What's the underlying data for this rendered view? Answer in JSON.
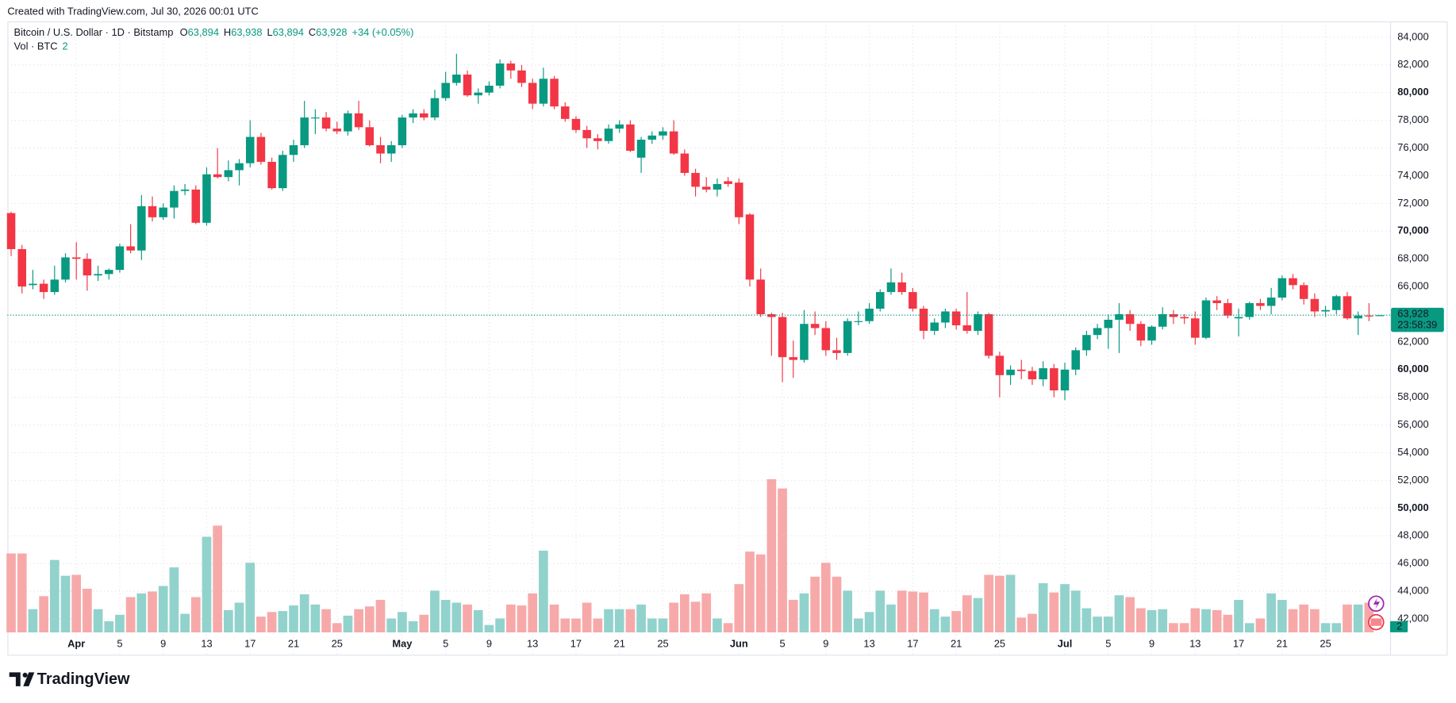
{
  "header": "Created with TradingView.com, Jul 30, 2026 00:01 UTC",
  "logo": "TradingView",
  "chart_data": {
    "type": "candlestick",
    "title": "Bitcoin / U.S. Dollar · 1D · Bitstamp",
    "ohlc_labels": [
      {
        "key": "O",
        "value": "63,894"
      },
      {
        "key": "H",
        "value": "63,938"
      },
      {
        "key": "L",
        "value": "63,894"
      },
      {
        "key": "C",
        "value": "63,928"
      }
    ],
    "change_label": "+34 (+0.05%)",
    "volume_label": "Vol · BTC",
    "countdown": "23:58:39",
    "up_color": "#089981",
    "down_color": "#f23645",
    "volume_up_color": "#92d2cc",
    "volume_down_color": "#f7a9a9",
    "grid": true,
    "categories": [
      "Mar 26",
      "Mar 27",
      "Mar 28",
      "Mar 29",
      "Mar 30",
      "Mar 31",
      "Apr 1",
      "Apr 2",
      "Apr 3",
      "Apr 4",
      "Apr 5",
      "Apr 6",
      "Apr 7",
      "Apr 8",
      "Apr 9",
      "Apr 10",
      "Apr 11",
      "Apr 12",
      "Apr 13",
      "Apr 14",
      "Apr 15",
      "Apr 16",
      "Apr 17",
      "Apr 18",
      "Apr 19",
      "Apr 20",
      "Apr 21",
      "Apr 22",
      "Apr 23",
      "Apr 24",
      "Apr 25",
      "Apr 26",
      "Apr 27",
      "Apr 28",
      "Apr 29",
      "Apr 30",
      "May 1",
      "May 2",
      "May 3",
      "May 4",
      "May 5",
      "May 6",
      "May 7",
      "May 8",
      "May 9",
      "May 10",
      "May 11",
      "May 12",
      "May 13",
      "May 14",
      "May 15",
      "May 16",
      "May 17",
      "May 18",
      "May 19",
      "May 20",
      "May 21",
      "May 22",
      "May 23",
      "May 24",
      "May 25",
      "May 26",
      "May 27",
      "May 28",
      "May 29",
      "May 30",
      "May 31",
      "Jun 1",
      "Jun 2",
      "Jun 3",
      "Jun 4",
      "Jun 5",
      "Jun 6",
      "Jun 7",
      "Jun 8",
      "Jun 9",
      "Jun 10",
      "Jun 11",
      "Jun 12",
      "Jun 13",
      "Jun 14",
      "Jun 15",
      "Jun 16",
      "Jun 17",
      "Jun 18",
      "Jun 19",
      "Jun 20",
      "Jun 21",
      "Jun 22",
      "Jun 23",
      "Jun 24",
      "Jun 25",
      "Jun 26",
      "Jun 27",
      "Jun 28",
      "Jun 29",
      "Jun 30",
      "Jul 1",
      "Jul 2",
      "Jul 3",
      "Jul 4",
      "Jul 5",
      "Jul 6",
      "Jul 7",
      "Jul 8",
      "Jul 9",
      "Jul 10",
      "Jul 11",
      "Jul 12",
      "Jul 13",
      "Jul 14",
      "Jul 15",
      "Jul 16",
      "Jul 17",
      "Jul 18",
      "Jul 19",
      "Jul 20",
      "Jul 21",
      "Jul 22",
      "Jul 23",
      "Jul 24",
      "Jul 25",
      "Jul 26",
      "Jul 27",
      "Jul 28",
      "Jul 29",
      "Jul 30"
    ],
    "open": [
      71300,
      68700,
      66100,
      66200,
      65600,
      66500,
      68100,
      68000,
      66800,
      66900,
      67200,
      68900,
      68600,
      71800,
      71000,
      71700,
      72900,
      73000,
      70600,
      74100,
      73900,
      74400,
      74900,
      76800,
      75000,
      73100,
      75500,
      76200,
      78200,
      78200,
      77400,
      77200,
      78500,
      77500,
      76200,
      75600,
      76200,
      78200,
      78500,
      78200,
      79600,
      80700,
      81300,
      79800,
      80000,
      80500,
      82100,
      81600,
      80700,
      79200,
      81000,
      79000,
      78100,
      77300,
      76700,
      76500,
      77400,
      77700,
      75300,
      76600,
      76900,
      77200,
      75600,
      74200,
      73200,
      73000,
      73600,
      73500,
      71200,
      66500,
      64000,
      63800,
      60900,
      60700,
      63300,
      63000,
      61400,
      61200,
      63500,
      63500,
      64400,
      65600,
      66300,
      65600,
      64400,
      62800,
      63400,
      64200,
      63200,
      62800,
      64000,
      61000,
      59600,
      60000,
      59900,
      59300,
      60100,
      58500,
      60000,
      61400,
      62500,
      63000,
      63600,
      64000,
      63300,
      62100,
      63100,
      64000,
      63800,
      63700,
      62300,
      65000,
      64800,
      63700,
      63800,
      64800,
      64600,
      65200,
      66600,
      66100,
      65100,
      64200,
      64300,
      65300,
      63700,
      63900,
      63894
    ],
    "high": [
      71400,
      69000,
      67200,
      66500,
      67500,
      68400,
      69200,
      68400,
      67500,
      67300,
      69100,
      70500,
      72600,
      72500,
      72000,
      73300,
      73400,
      73300,
      74600,
      76000,
      75100,
      75200,
      78000,
      77100,
      75300,
      75800,
      76600,
      79400,
      78800,
      78600,
      77900,
      78700,
      79400,
      78000,
      76800,
      76500,
      78400,
      78800,
      78800,
      80200,
      81500,
      82800,
      81600,
      80300,
      80800,
      82400,
      82300,
      82000,
      81000,
      81800,
      81200,
      79300,
      78300,
      77600,
      77000,
      77700,
      78000,
      78000,
      76800,
      77200,
      77500,
      78000,
      75900,
      74500,
      73900,
      73800,
      73900,
      73800,
      71300,
      67300,
      64100,
      64100,
      62100,
      64300,
      64200,
      63500,
      62300,
      63700,
      64200,
      64800,
      65800,
      67300,
      67000,
      65900,
      64600,
      63700,
      64400,
      64400,
      65600,
      64200,
      64100,
      61300,
      60300,
      60700,
      60200,
      60600,
      60400,
      60500,
      61600,
      62800,
      63300,
      64000,
      64800,
      64300,
      63500,
      63200,
      64500,
      64300,
      64000,
      64200,
      65200,
      65300,
      65100,
      64400,
      64900,
      65100,
      65900,
      66800,
      66900,
      66300,
      65500,
      64600,
      65400,
      65600,
      64200,
      64800,
      63938
    ],
    "low": [
      68200,
      65500,
      65800,
      65100,
      65400,
      66300,
      66500,
      65700,
      66400,
      66500,
      67000,
      68400,
      67900,
      70700,
      70800,
      70900,
      72600,
      70500,
      70400,
      73800,
      73600,
      73300,
      74600,
      74800,
      73000,
      72900,
      75000,
      76000,
      77000,
      77200,
      77000,
      76900,
      77300,
      76100,
      74900,
      75000,
      76000,
      77800,
      78000,
      78000,
      79400,
      80500,
      79700,
      79200,
      79800,
      80300,
      81000,
      80400,
      78800,
      79000,
      78800,
      77900,
      77100,
      76000,
      75900,
      76300,
      77100,
      75700,
      74200,
      76300,
      76600,
      75500,
      74000,
      72500,
      72800,
      72500,
      73200,
      70500,
      66000,
      63800,
      61000,
      59100,
      59400,
      60500,
      62500,
      61000,
      60700,
      61000,
      63200,
      63300,
      64200,
      65400,
      65400,
      64200,
      62200,
      62500,
      63000,
      62900,
      62600,
      62500,
      60800,
      58000,
      58900,
      59300,
      58900,
      58800,
      58000,
      57800,
      59600,
      61000,
      62200,
      61500,
      61200,
      62800,
      61700,
      61800,
      62900,
      63300,
      63300,
      61800,
      62200,
      64300,
      63700,
      62400,
      63600,
      64300,
      64000,
      65000,
      65800,
      64700,
      63800,
      63800,
      64000,
      63600,
      62500,
      63500,
      63894
    ],
    "close": [
      68700,
      66000,
      66200,
      65600,
      66500,
      68100,
      68000,
      66800,
      66900,
      67200,
      68900,
      68600,
      71800,
      71000,
      71700,
      72900,
      73000,
      70600,
      74100,
      73900,
      74400,
      74900,
      76800,
      75000,
      73100,
      75500,
      76200,
      78200,
      78200,
      77400,
      77200,
      78500,
      77500,
      76200,
      75600,
      76200,
      78200,
      78500,
      78200,
      79600,
      80700,
      81300,
      79800,
      80000,
      80500,
      82100,
      81600,
      80700,
      79200,
      81000,
      79000,
      78100,
      77300,
      76700,
      76500,
      77400,
      77700,
      75800,
      76600,
      76900,
      77200,
      75600,
      74200,
      73200,
      73000,
      73400,
      73400,
      71000,
      66500,
      64000,
      63800,
      60900,
      60700,
      63300,
      63000,
      61400,
      61200,
      63500,
      63500,
      64400,
      65600,
      66300,
      65600,
      64400,
      62800,
      63400,
      64200,
      63200,
      62800,
      64000,
      61000,
      59600,
      60000,
      59900,
      59300,
      60100,
      58500,
      60000,
      61400,
      62500,
      63000,
      63600,
      64000,
      63300,
      62100,
      63100,
      64000,
      63800,
      63700,
      62300,
      65000,
      64800,
      63900,
      63800,
      64800,
      64600,
      65200,
      66600,
      66100,
      65100,
      64200,
      64300,
      65300,
      63700,
      63900,
      63894,
      63928
    ],
    "volume": [
      1700,
      1700,
      500,
      780,
      1560,
      1220,
      1240,
      940,
      500,
      240,
      380,
      760,
      840,
      880,
      1000,
      1400,
      400,
      760,
      2060,
      2300,
      480,
      640,
      1500,
      340,
      440,
      460,
      580,
      820,
      600,
      500,
      200,
      360,
      500,
      560,
      700,
      300,
      440,
      240,
      380,
      900,
      700,
      640,
      600,
      480,
      160,
      300,
      600,
      580,
      840,
      1760,
      600,
      300,
      300,
      640,
      300,
      500,
      500,
      500,
      600,
      300,
      300,
      640,
      820,
      660,
      840,
      300,
      200,
      1040,
      1740,
      1680,
      3300,
      3100,
      700,
      840,
      1200,
      1500,
      1200,
      900,
      300,
      440,
      900,
      600,
      900,
      880,
      860,
      500,
      340,
      460,
      800,
      740,
      1240,
      1220,
      1240,
      320,
      400,
      1060,
      860,
      1040,
      900,
      520,
      340,
      340,
      800,
      760,
      520,
      480,
      500,
      200,
      200,
      520,
      500,
      480,
      380,
      700,
      200,
      300,
      840,
      700,
      500,
      600,
      500,
      200,
      200,
      600,
      600,
      640,
      2
    ],
    "ylim": [
      39420,
      85140
    ],
    "yticks": [
      {
        "value": 42000,
        "label": "42,000"
      },
      {
        "value": 44000,
        "label": "44,000"
      },
      {
        "value": 46000,
        "label": "46,000"
      },
      {
        "value": 48000,
        "label": "48,000"
      },
      {
        "value": 50000,
        "label": "50,000"
      },
      {
        "value": 52000,
        "label": "52,000"
      },
      {
        "value": 54000,
        "label": "54,000"
      },
      {
        "value": 56000,
        "label": "56,000"
      },
      {
        "value": 58000,
        "label": "58,000"
      },
      {
        "value": 60000,
        "label": "60,000"
      },
      {
        "value": 62000,
        "label": "62,000"
      },
      {
        "value": 64000,
        "label": "64,000"
      },
      {
        "value": 66000,
        "label": "66,000"
      },
      {
        "value": 68000,
        "label": "68,000"
      },
      {
        "value": 70000,
        "label": "70,000"
      },
      {
        "value": 72000,
        "label": "72,000"
      },
      {
        "value": 74000,
        "label": "74,000"
      },
      {
        "value": 76000,
        "label": "76,000"
      },
      {
        "value": 78000,
        "label": "78,000"
      },
      {
        "value": 80000,
        "label": "80,000"
      },
      {
        "value": 82000,
        "label": "82,000"
      },
      {
        "value": 84000,
        "label": "84,000"
      }
    ],
    "xticks": [
      {
        "value": "Apr 1",
        "label": "Apr"
      },
      {
        "value": "Apr 5",
        "label": "5"
      },
      {
        "value": "Apr 9",
        "label": "9"
      },
      {
        "value": "Apr 13",
        "label": "13"
      },
      {
        "value": "Apr 17",
        "label": "17"
      },
      {
        "value": "Apr 21",
        "label": "21"
      },
      {
        "value": "Apr 25",
        "label": "25"
      },
      {
        "value": "May 1",
        "label": "May"
      },
      {
        "value": "May 5",
        "label": "5"
      },
      {
        "value": "May 9",
        "label": "9"
      },
      {
        "value": "May 13",
        "label": "13"
      },
      {
        "value": "May 17",
        "label": "17"
      },
      {
        "value": "May 21",
        "label": "21"
      },
      {
        "value": "May 25",
        "label": "25"
      },
      {
        "value": "Jun 1",
        "label": "Jun"
      },
      {
        "value": "Jun 5",
        "label": "5"
      },
      {
        "value": "Jun 9",
        "label": "9"
      },
      {
        "value": "Jun 13",
        "label": "13"
      },
      {
        "value": "Jun 17",
        "label": "17"
      },
      {
        "value": "Jun 21",
        "label": "21"
      },
      {
        "value": "Jun 25",
        "label": "25"
      },
      {
        "value": "Jul 1",
        "label": "Jul"
      },
      {
        "value": "Jul 5",
        "label": "5"
      },
      {
        "value": "Jul 9",
        "label": "9"
      },
      {
        "value": "Jul 13",
        "label": "13"
      },
      {
        "value": "Jul 17",
        "label": "17"
      },
      {
        "value": "Jul 21",
        "label": "21"
      },
      {
        "value": "Jul 25",
        "label": "25"
      }
    ]
  }
}
